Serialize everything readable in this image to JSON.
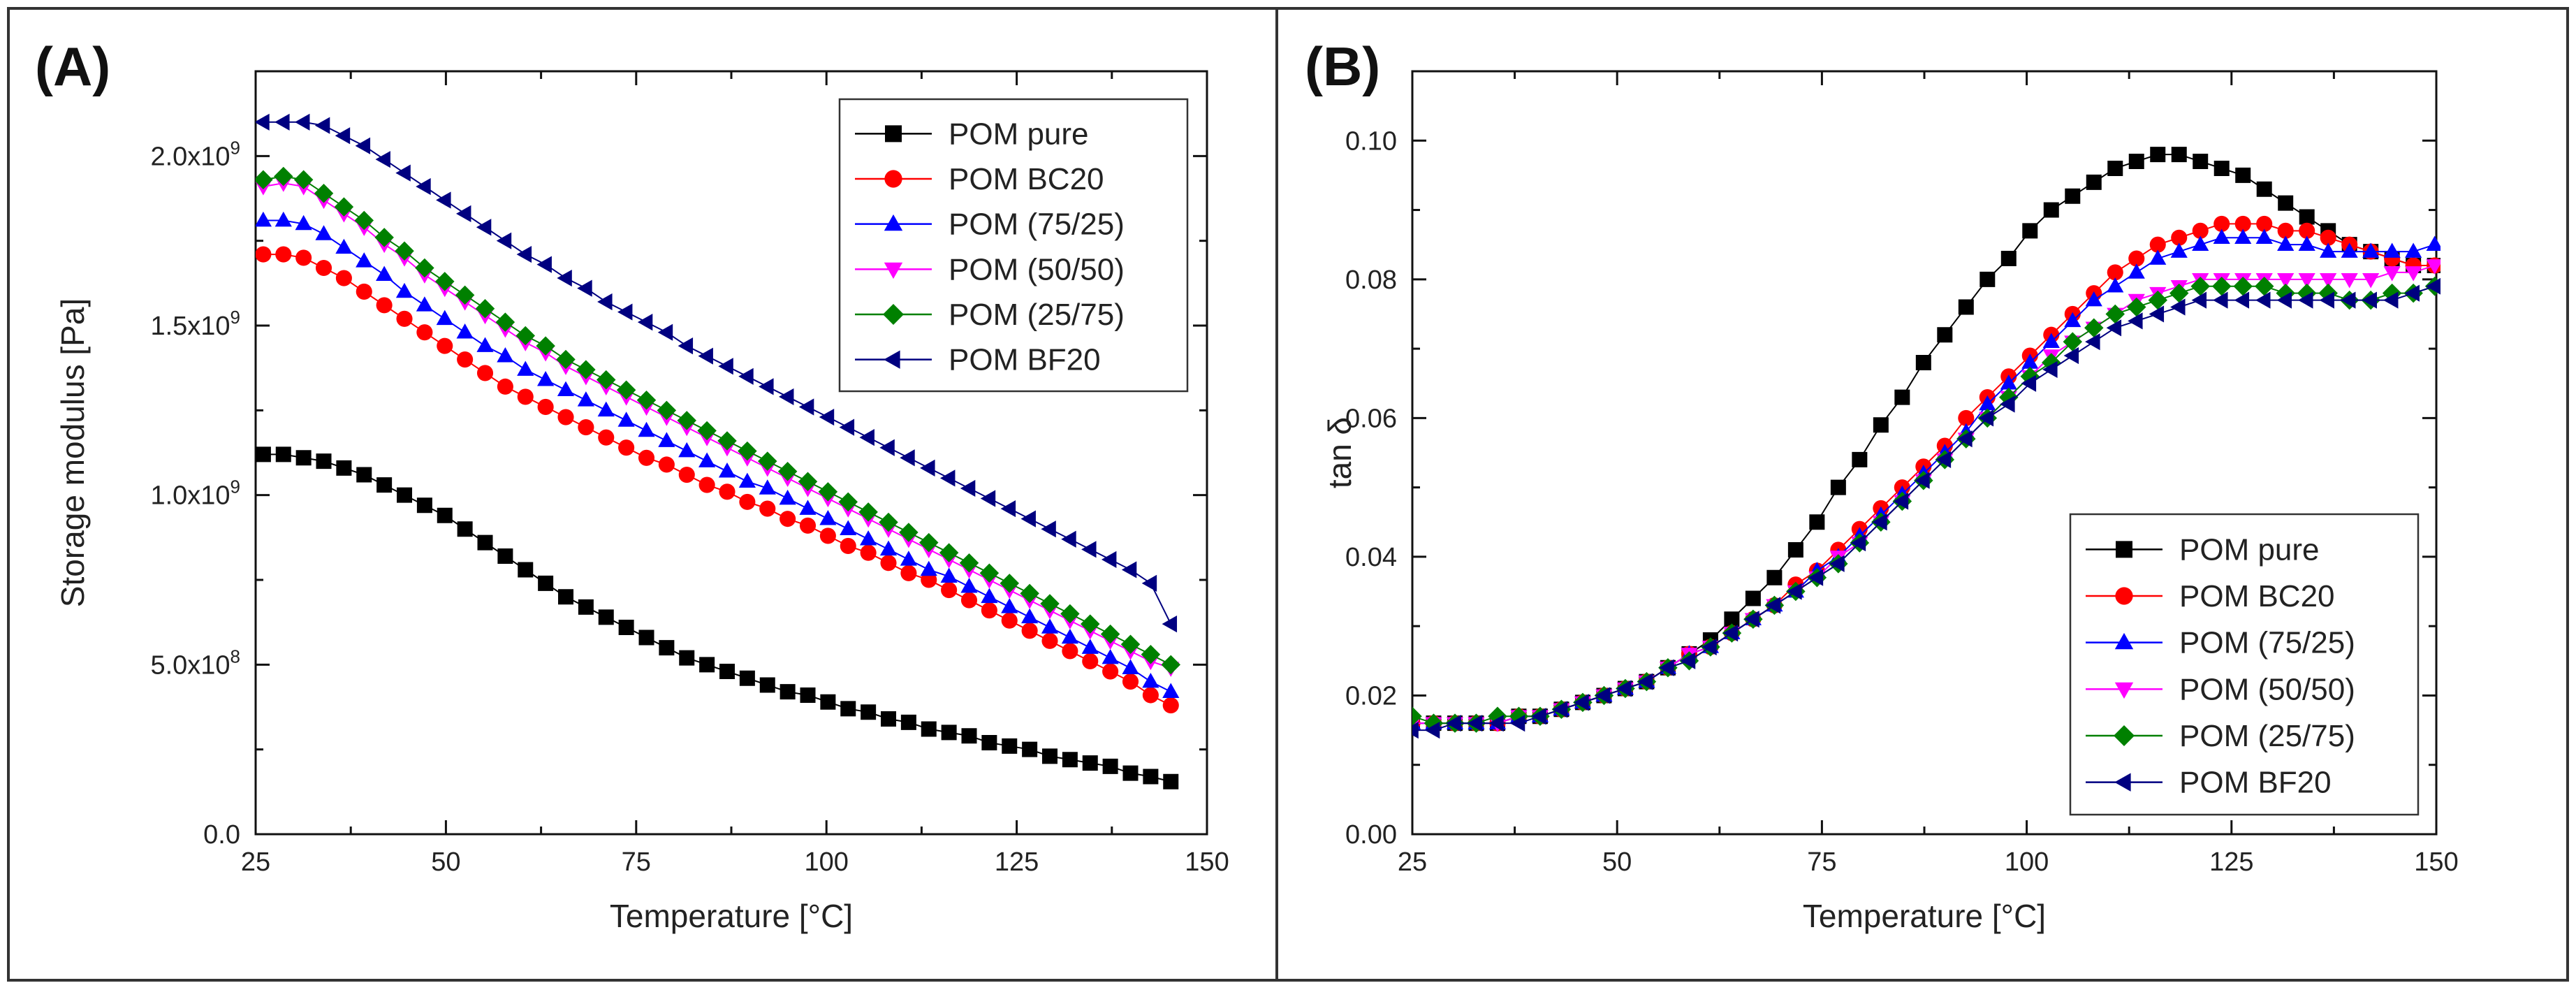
{
  "colors": {
    "POM pure": "#000000",
    "POM BC20": "#ff0000",
    "POM (75/25)": "#0000ff",
    "POM (50/50)": "#ff00ff",
    "POM (25/75)": "#008000",
    "POM BF20": "#000080"
  },
  "markers": {
    "POM pure": "square",
    "POM BC20": "circle",
    "POM (75/25)": "triangle-up",
    "POM (50/50)": "triangle-down",
    "POM (25/75)": "diamond",
    "POM BF20": "triangle-left"
  },
  "chart_data": [
    {
      "type": "scatter",
      "panel_label": "(A)",
      "title": "",
      "xlabel": "Temperature [°C]",
      "ylabel": "Storage modulus [Pa]",
      "xlim": [
        25,
        150
      ],
      "ylim": [
        0,
        2250000000
      ],
      "x_ticks": [
        25,
        50,
        75,
        100,
        125,
        150
      ],
      "x_tick_labels": [
        "25",
        "50",
        "75",
        "100",
        "125",
        "150"
      ],
      "y_ticks": [
        0,
        500000000,
        1000000000,
        1500000000,
        2000000000
      ],
      "y_tick_labels": [
        {
          "base": "0.0",
          "exp": ""
        },
        {
          "base": "5.0x10",
          "exp": "8"
        },
        {
          "base": "1.0x10",
          "exp": "9"
        },
        {
          "base": "1.5x10",
          "exp": "9"
        },
        {
          "base": "2.0x10",
          "exp": "9"
        }
      ],
      "legend_position": "top-right",
      "x_start": 26,
      "x_step": 2.65,
      "n_points": 46,
      "series": [
        {
          "name": "POM pure",
          "values": [
            1120000000.0,
            1120000000.0,
            1110000000.0,
            1100000000.0,
            1080000000.0,
            1060000000.0,
            1030000000.0,
            1000000000.0,
            970000000.0,
            940000000.0,
            900000000.0,
            860000000.0,
            820000000.0,
            780000000.0,
            740000000.0,
            700000000.0,
            670000000.0,
            640000000.0,
            610000000.0,
            580000000.0,
            550000000.0,
            520000000.0,
            500000000.0,
            480000000.0,
            460000000.0,
            440000000.0,
            420000000.0,
            410000000.0,
            390000000.0,
            370000000.0,
            360000000.0,
            340000000.0,
            330000000.0,
            310000000.0,
            300000000.0,
            290000000.0,
            270000000.0,
            260000000.0,
            250000000.0,
            230000000.0,
            220000000.0,
            210000000.0,
            200000000.0,
            180000000.0,
            170000000.0,
            155000000.0
          ]
        },
        {
          "name": "POM BC20",
          "values": [
            1710000000.0,
            1710000000.0,
            1700000000.0,
            1670000000.0,
            1640000000.0,
            1600000000.0,
            1560000000.0,
            1520000000.0,
            1480000000.0,
            1440000000.0,
            1400000000.0,
            1360000000.0,
            1320000000.0,
            1290000000.0,
            1260000000.0,
            1230000000.0,
            1200000000.0,
            1170000000.0,
            1140000000.0,
            1110000000.0,
            1090000000.0,
            1060000000.0,
            1030000000.0,
            1010000000.0,
            980000000.0,
            960000000.0,
            930000000.0,
            910000000.0,
            880000000.0,
            850000000.0,
            830000000.0,
            800000000.0,
            770000000.0,
            750000000.0,
            720000000.0,
            690000000.0,
            660000000.0,
            630000000.0,
            600000000.0,
            570000000.0,
            540000000.0,
            510000000.0,
            480000000.0,
            450000000.0,
            410000000.0,
            380000000.0
          ]
        },
        {
          "name": "POM (75/25)",
          "values": [
            1810000000.0,
            1810000000.0,
            1800000000.0,
            1770000000.0,
            1730000000.0,
            1690000000.0,
            1650000000.0,
            1600000000.0,
            1560000000.0,
            1520000000.0,
            1480000000.0,
            1440000000.0,
            1410000000.0,
            1370000000.0,
            1340000000.0,
            1310000000.0,
            1280000000.0,
            1250000000.0,
            1220000000.0,
            1190000000.0,
            1160000000.0,
            1130000000.0,
            1100000000.0,
            1070000000.0,
            1040000000.0,
            1020000000.0,
            990000000.0,
            960000000.0,
            930000000.0,
            900000000.0,
            870000000.0,
            840000000.0,
            810000000.0,
            780000000.0,
            760000000.0,
            730000000.0,
            700000000.0,
            670000000.0,
            640000000.0,
            610000000.0,
            580000000.0,
            550000000.0,
            520000000.0,
            490000000.0,
            450000000.0,
            420000000.0
          ]
        },
        {
          "name": "POM (50/50)",
          "values": [
            1910000000.0,
            1920000000.0,
            1910000000.0,
            1870000000.0,
            1830000000.0,
            1790000000.0,
            1740000000.0,
            1700000000.0,
            1650000000.0,
            1610000000.0,
            1570000000.0,
            1530000000.0,
            1490000000.0,
            1450000000.0,
            1420000000.0,
            1380000000.0,
            1350000000.0,
            1320000000.0,
            1290000000.0,
            1260000000.0,
            1230000000.0,
            1200000000.0,
            1170000000.0,
            1140000000.0,
            1110000000.0,
            1080000000.0,
            1050000000.0,
            1020000000.0,
            990000000.0,
            960000000.0,
            930000000.0,
            900000000.0,
            870000000.0,
            840000000.0,
            810000000.0,
            780000000.0,
            750000000.0,
            720000000.0,
            690000000.0,
            660000000.0,
            630000000.0,
            600000000.0,
            570000000.0,
            540000000.0,
            510000000.0,
            490000000.0
          ]
        },
        {
          "name": "POM (25/75)",
          "values": [
            1930000000.0,
            1940000000.0,
            1930000000.0,
            1890000000.0,
            1850000000.0,
            1810000000.0,
            1760000000.0,
            1720000000.0,
            1670000000.0,
            1630000000.0,
            1590000000.0,
            1550000000.0,
            1510000000.0,
            1470000000.0,
            1440000000.0,
            1400000000.0,
            1370000000.0,
            1340000000.0,
            1310000000.0,
            1280000000.0,
            1250000000.0,
            1220000000.0,
            1190000000.0,
            1160000000.0,
            1130000000.0,
            1100000000.0,
            1070000000.0,
            1040000000.0,
            1010000000.0,
            980000000.0,
            950000000.0,
            920000000.0,
            890000000.0,
            860000000.0,
            830000000.0,
            800000000.0,
            770000000.0,
            740000000.0,
            710000000.0,
            680000000.0,
            650000000.0,
            620000000.0,
            590000000.0,
            560000000.0,
            530000000.0,
            500000000.0
          ]
        },
        {
          "name": "POM BF20",
          "values": [
            2100000000.0,
            2100000000.0,
            2100000000.0,
            2090000000.0,
            2060000000.0,
            2030000000.0,
            1990000000.0,
            1950000000.0,
            1910000000.0,
            1870000000.0,
            1830000000.0,
            1790000000.0,
            1750000000.0,
            1710000000.0,
            1680000000.0,
            1640000000.0,
            1610000000.0,
            1570000000.0,
            1540000000.0,
            1510000000.0,
            1480000000.0,
            1440000000.0,
            1410000000.0,
            1380000000.0,
            1350000000.0,
            1320000000.0,
            1290000000.0,
            1260000000.0,
            1230000000.0,
            1200000000.0,
            1170000000.0,
            1140000000.0,
            1110000000.0,
            1080000000.0,
            1050000000.0,
            1020000000.0,
            990000000.0,
            960000000.0,
            930000000.0,
            900000000.0,
            870000000.0,
            840000000.0,
            810000000.0,
            780000000.0,
            740000000.0,
            620000000.0
          ]
        }
      ]
    },
    {
      "type": "scatter",
      "panel_label": "(B)",
      "title": "",
      "xlabel": "Temperature [°C]",
      "ylabel": "tan δ",
      "xlim": [
        25,
        150
      ],
      "ylim": [
        0,
        0.11
      ],
      "x_ticks": [
        25,
        50,
        75,
        100,
        125,
        150
      ],
      "x_tick_labels": [
        "25",
        "50",
        "75",
        "100",
        "125",
        "150"
      ],
      "y_ticks": [
        0,
        0.02,
        0.04,
        0.06,
        0.08,
        0.1
      ],
      "y_tick_labels": [
        {
          "base": "0.00",
          "exp": ""
        },
        {
          "base": "0.02",
          "exp": ""
        },
        {
          "base": "0.04",
          "exp": ""
        },
        {
          "base": "0.06",
          "exp": ""
        },
        {
          "base": "0.08",
          "exp": ""
        },
        {
          "base": "0.10",
          "exp": ""
        }
      ],
      "legend_position": "bottom-right",
      "x_start": 25,
      "x_step": 2.6,
      "n_points": 49,
      "series": [
        {
          "name": "POM pure",
          "values": [
            0.016,
            0.016,
            0.016,
            0.016,
            0.016,
            0.017,
            0.017,
            0.018,
            0.019,
            0.02,
            0.021,
            0.022,
            0.024,
            0.026,
            0.028,
            0.031,
            0.034,
            0.037,
            0.041,
            0.045,
            0.05,
            0.054,
            0.059,
            0.063,
            0.068,
            0.072,
            0.076,
            0.08,
            0.083,
            0.087,
            0.09,
            0.092,
            0.094,
            0.096,
            0.097,
            0.098,
            0.098,
            0.097,
            0.096,
            0.095,
            0.093,
            0.091,
            0.089,
            0.087,
            0.085,
            0.084,
            0.083,
            0.082,
            0.082
          ]
        },
        {
          "name": "POM BC20",
          "values": [
            0.016,
            0.016,
            0.016,
            0.016,
            0.016,
            0.017,
            0.017,
            0.018,
            0.019,
            0.02,
            0.021,
            0.022,
            0.024,
            0.026,
            0.027,
            0.029,
            0.031,
            0.033,
            0.036,
            0.038,
            0.041,
            0.044,
            0.047,
            0.05,
            0.053,
            0.056,
            0.06,
            0.063,
            0.066,
            0.069,
            0.072,
            0.075,
            0.078,
            0.081,
            0.083,
            0.085,
            0.086,
            0.087,
            0.088,
            0.088,
            0.088,
            0.087,
            0.087,
            0.086,
            0.085,
            0.084,
            0.083,
            0.082,
            0.082
          ]
        },
        {
          "name": "POM (75/25)",
          "values": [
            0.016,
            0.016,
            0.016,
            0.016,
            0.016,
            0.017,
            0.017,
            0.018,
            0.019,
            0.02,
            0.021,
            0.022,
            0.024,
            0.026,
            0.027,
            0.029,
            0.031,
            0.033,
            0.035,
            0.038,
            0.04,
            0.043,
            0.046,
            0.049,
            0.052,
            0.055,
            0.058,
            0.062,
            0.065,
            0.068,
            0.071,
            0.074,
            0.077,
            0.079,
            0.081,
            0.083,
            0.084,
            0.085,
            0.086,
            0.086,
            0.086,
            0.085,
            0.085,
            0.084,
            0.084,
            0.084,
            0.084,
            0.084,
            0.085
          ]
        },
        {
          "name": "POM (50/50)",
          "values": [
            0.016,
            0.016,
            0.016,
            0.016,
            0.016,
            0.017,
            0.017,
            0.018,
            0.019,
            0.02,
            0.021,
            0.022,
            0.024,
            0.026,
            0.027,
            0.029,
            0.031,
            0.033,
            0.035,
            0.037,
            0.04,
            0.042,
            0.045,
            0.048,
            0.051,
            0.054,
            0.057,
            0.06,
            0.063,
            0.066,
            0.069,
            0.071,
            0.073,
            0.075,
            0.077,
            0.078,
            0.079,
            0.08,
            0.08,
            0.08,
            0.08,
            0.08,
            0.08,
            0.08,
            0.08,
            0.08,
            0.081,
            0.081,
            0.082
          ]
        },
        {
          "name": "POM (25/75)",
          "values": [
            0.017,
            0.016,
            0.016,
            0.016,
            0.017,
            0.017,
            0.017,
            0.018,
            0.019,
            0.02,
            0.021,
            0.022,
            0.024,
            0.025,
            0.027,
            0.029,
            0.031,
            0.033,
            0.035,
            0.037,
            0.039,
            0.042,
            0.045,
            0.048,
            0.051,
            0.054,
            0.057,
            0.06,
            0.063,
            0.066,
            0.068,
            0.071,
            0.073,
            0.075,
            0.076,
            0.077,
            0.078,
            0.079,
            0.079,
            0.079,
            0.079,
            0.078,
            0.078,
            0.078,
            0.077,
            0.077,
            0.078,
            0.078,
            0.079
          ]
        },
        {
          "name": "POM BF20",
          "values": [
            0.015,
            0.015,
            0.016,
            0.016,
            0.016,
            0.016,
            0.017,
            0.018,
            0.019,
            0.02,
            0.021,
            0.022,
            0.024,
            0.025,
            0.027,
            0.029,
            0.031,
            0.033,
            0.035,
            0.037,
            0.039,
            0.042,
            0.045,
            0.048,
            0.051,
            0.054,
            0.057,
            0.06,
            0.062,
            0.065,
            0.067,
            0.069,
            0.071,
            0.073,
            0.074,
            0.075,
            0.076,
            0.077,
            0.077,
            0.077,
            0.077,
            0.077,
            0.077,
            0.077,
            0.077,
            0.077,
            0.077,
            0.078,
            0.079
          ]
        }
      ]
    }
  ]
}
